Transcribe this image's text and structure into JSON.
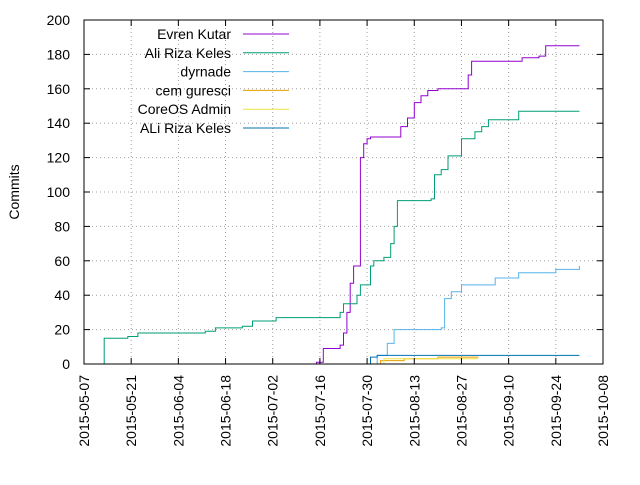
{
  "chart_data": {
    "type": "line",
    "title": "",
    "xlabel": "",
    "ylabel": "Commits",
    "xlim": [
      "2015-05-07",
      "2015-10-08"
    ],
    "ylim": [
      0,
      200
    ],
    "grid": true,
    "legend_position": "top-left",
    "x_ticks": [
      "2015-05-07",
      "2015-05-21",
      "2015-06-04",
      "2015-06-18",
      "2015-07-02",
      "2015-07-16",
      "2015-07-30",
      "2015-08-13",
      "2015-08-27",
      "2015-09-10",
      "2015-09-24",
      "2015-10-08"
    ],
    "y_ticks": [
      0,
      20,
      40,
      60,
      80,
      100,
      120,
      140,
      160,
      180,
      200
    ],
    "series": [
      {
        "name": "Evren Kutar",
        "color": "#9400d3",
        "points": [
          [
            "2015-07-09",
            0
          ],
          [
            "2015-07-15",
            1
          ],
          [
            "2015-07-17",
            9
          ],
          [
            "2015-07-22",
            11
          ],
          [
            "2015-07-23",
            18
          ],
          [
            "2015-07-24",
            30
          ],
          [
            "2015-07-25",
            47
          ],
          [
            "2015-07-26",
            57
          ],
          [
            "2015-07-28",
            120
          ],
          [
            "2015-07-29",
            128
          ],
          [
            "2015-07-30",
            131
          ],
          [
            "2015-07-31",
            132
          ],
          [
            "2015-08-09",
            138
          ],
          [
            "2015-08-11",
            143
          ],
          [
            "2015-08-13",
            152
          ],
          [
            "2015-08-15",
            156
          ],
          [
            "2015-08-17",
            159
          ],
          [
            "2015-08-20",
            160
          ],
          [
            "2015-08-29",
            168
          ],
          [
            "2015-08-30",
            176
          ],
          [
            "2015-09-10",
            176
          ],
          [
            "2015-09-14",
            178
          ],
          [
            "2015-09-19",
            179
          ],
          [
            "2015-09-21",
            185
          ],
          [
            "2015-10-01",
            185
          ]
        ]
      },
      {
        "name": "Ali Riza Keles",
        "color": "#009e73",
        "points": [
          [
            "2015-05-12",
            0
          ],
          [
            "2015-05-13",
            15
          ],
          [
            "2015-05-20",
            16
          ],
          [
            "2015-05-23",
            18
          ],
          [
            "2015-06-12",
            19
          ],
          [
            "2015-06-15",
            21
          ],
          [
            "2015-06-23",
            22
          ],
          [
            "2015-06-26",
            25
          ],
          [
            "2015-07-03",
            27
          ],
          [
            "2015-07-19",
            27
          ],
          [
            "2015-07-22",
            30
          ],
          [
            "2015-07-23",
            35
          ],
          [
            "2015-07-27",
            40
          ],
          [
            "2015-07-28",
            46
          ],
          [
            "2015-07-31",
            57
          ],
          [
            "2015-08-01",
            60
          ],
          [
            "2015-08-04",
            62
          ],
          [
            "2015-08-06",
            70
          ],
          [
            "2015-08-07",
            80
          ],
          [
            "2015-08-08",
            95
          ],
          [
            "2015-08-18",
            96
          ],
          [
            "2015-08-19",
            110
          ],
          [
            "2015-08-21",
            113
          ],
          [
            "2015-08-23",
            121
          ],
          [
            "2015-08-27",
            131
          ],
          [
            "2015-08-31",
            135
          ],
          [
            "2015-09-02",
            138
          ],
          [
            "2015-09-04",
            142
          ],
          [
            "2015-09-13",
            147
          ],
          [
            "2015-10-01",
            147
          ]
        ]
      },
      {
        "name": "dyrnade",
        "color": "#56b4e9",
        "points": [
          [
            "2015-07-28",
            0
          ],
          [
            "2015-08-02",
            5
          ],
          [
            "2015-08-05",
            12
          ],
          [
            "2015-08-07",
            20
          ],
          [
            "2015-08-21",
            21
          ],
          [
            "2015-08-22",
            38
          ],
          [
            "2015-08-24",
            42
          ],
          [
            "2015-08-27",
            46
          ],
          [
            "2015-09-06",
            50
          ],
          [
            "2015-09-13",
            53
          ],
          [
            "2015-09-24",
            55
          ],
          [
            "2015-10-01",
            57
          ]
        ]
      },
      {
        "name": "cem guresci",
        "color": "#e69f00",
        "points": [
          [
            "2015-08-02",
            0
          ],
          [
            "2015-08-03",
            2
          ],
          [
            "2015-08-10",
            3
          ],
          [
            "2015-08-20",
            4
          ],
          [
            "2015-09-01",
            4
          ]
        ]
      },
      {
        "name": "CoreOS Admin",
        "color": "#f0e442",
        "points": [
          [
            "2015-08-03",
            0
          ],
          [
            "2015-08-04",
            3
          ],
          [
            "2015-09-01",
            3
          ]
        ]
      },
      {
        "name": "ALi Riza Keles",
        "color": "#0072b2",
        "points": [
          [
            "2015-07-29",
            0
          ],
          [
            "2015-07-31",
            4
          ],
          [
            "2015-08-02",
            5
          ],
          [
            "2015-10-01",
            5
          ]
        ]
      }
    ]
  }
}
